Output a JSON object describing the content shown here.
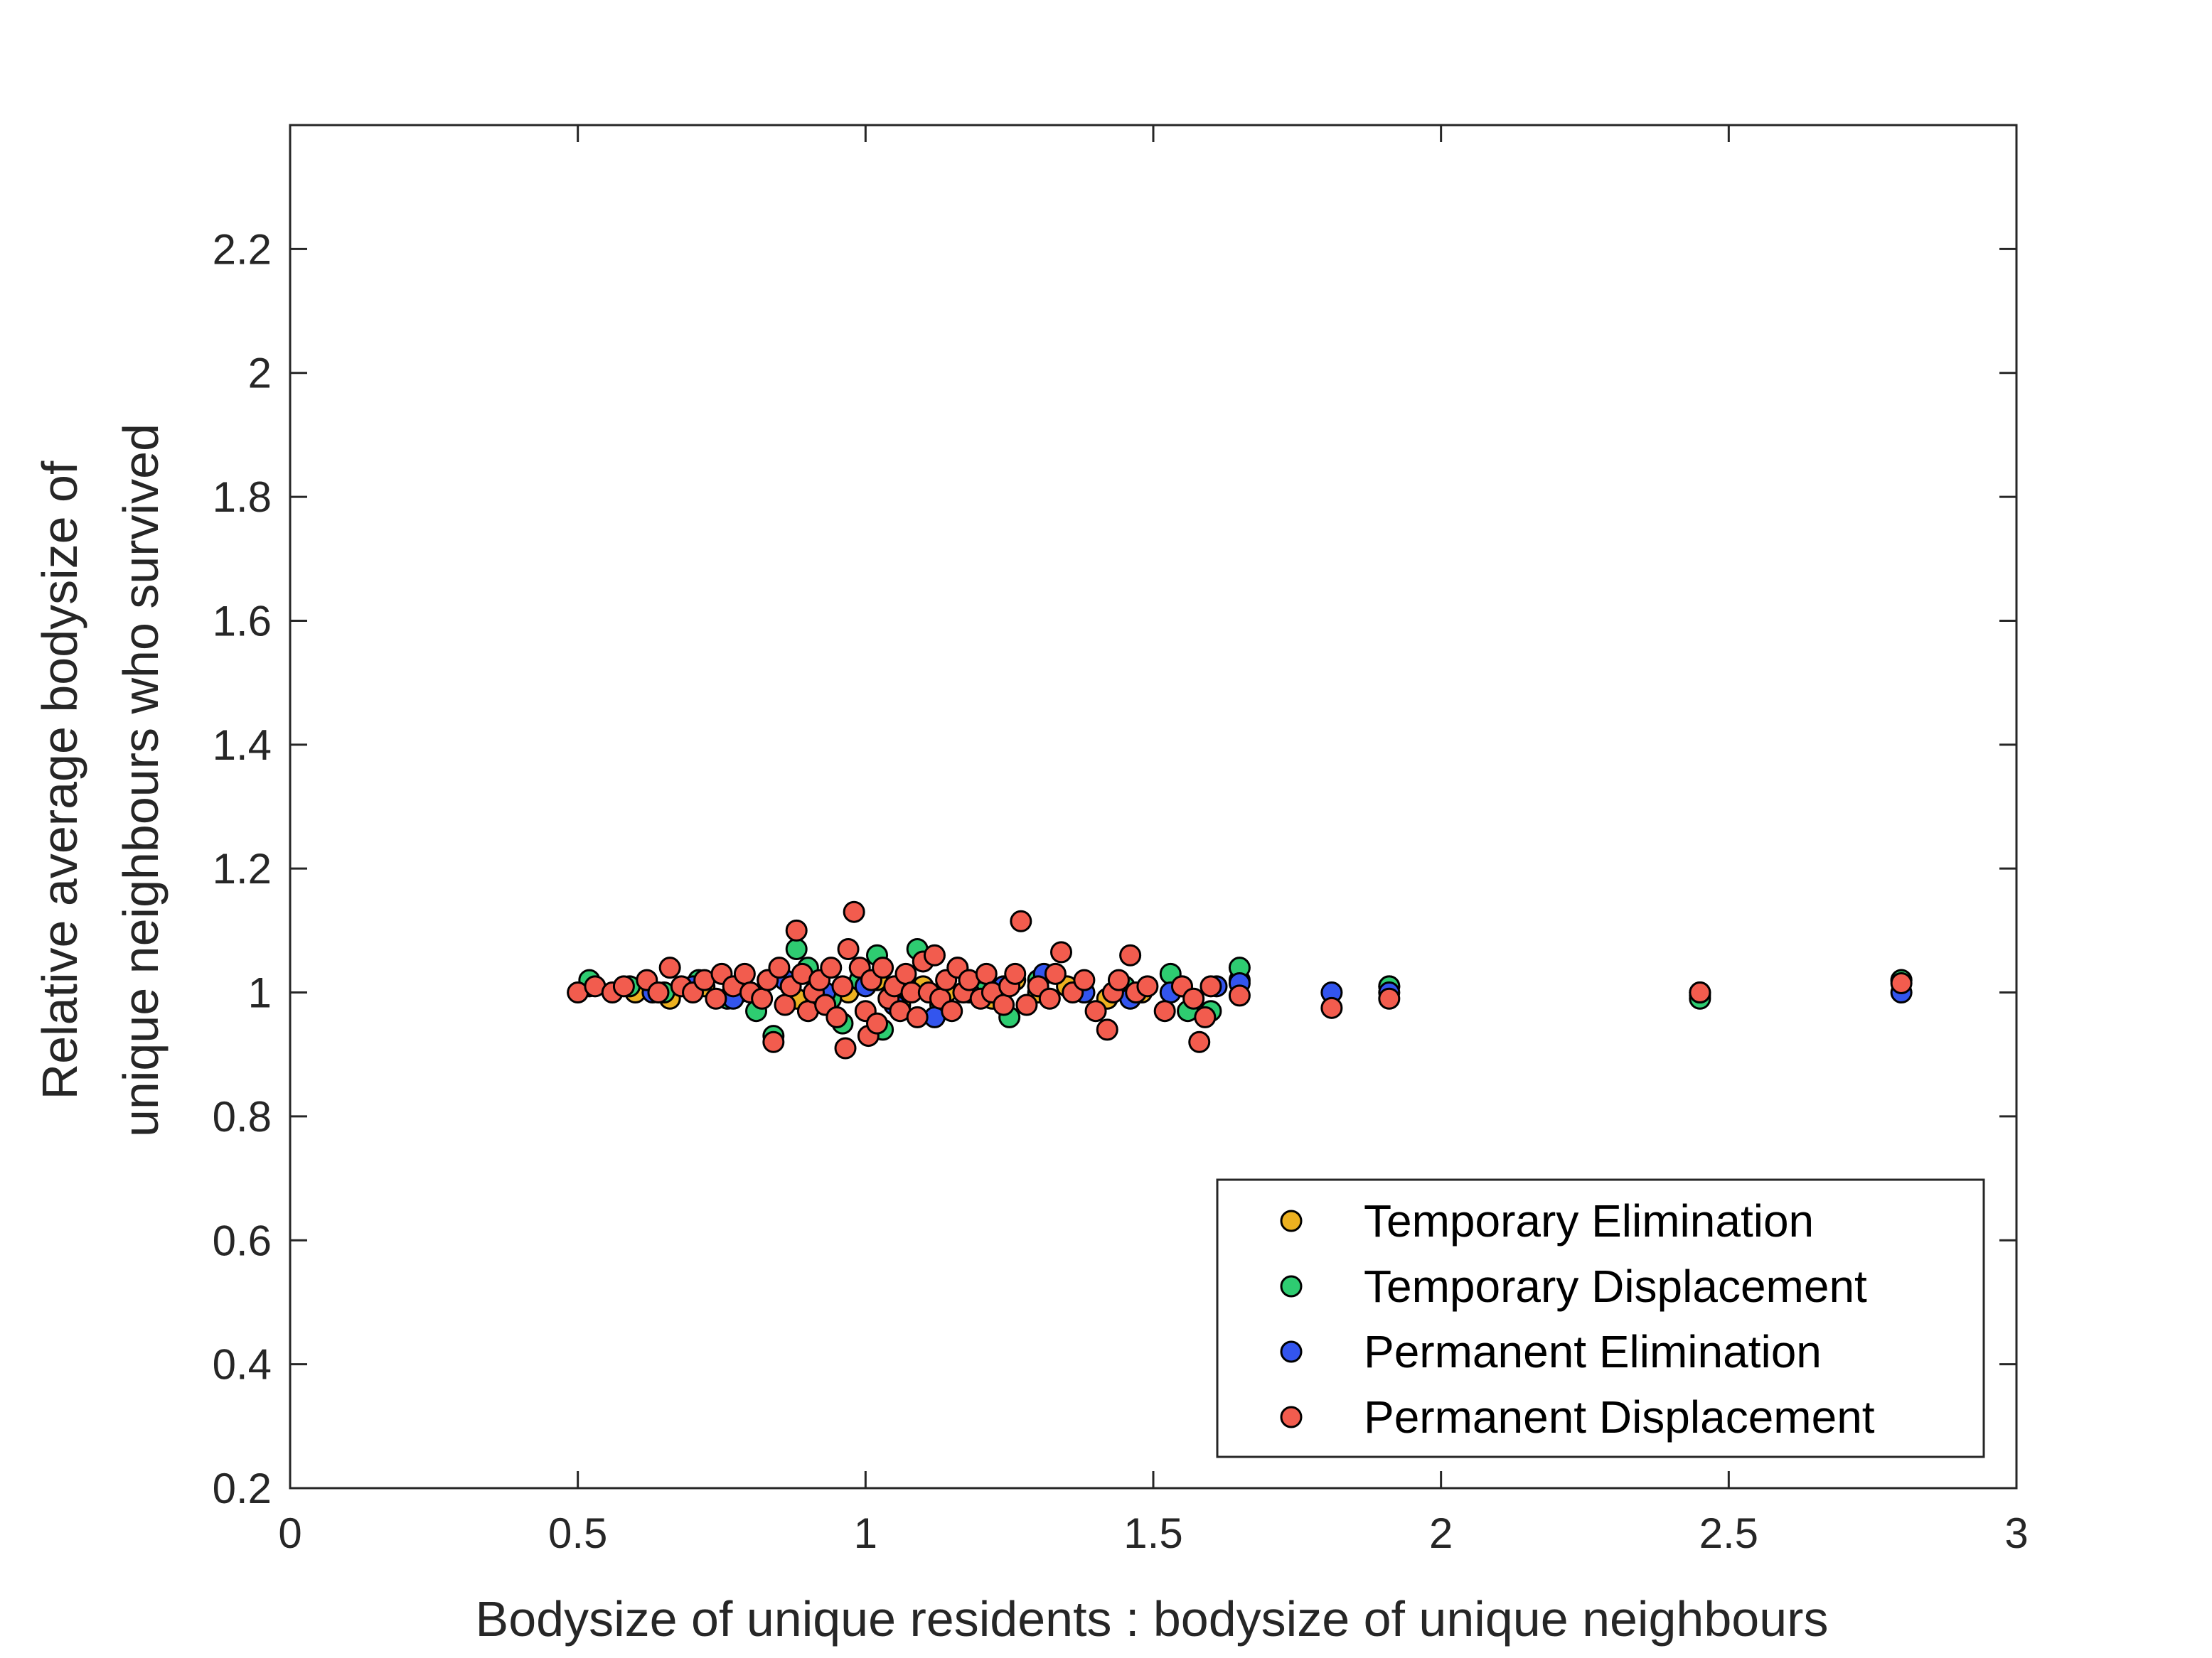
{
  "chart_data": {
    "type": "scatter",
    "xlabel": "Bodysize of unique residents : bodysize of unique neighbours",
    "ylabel_lines": [
      "Relative average bodysize of",
      "unique neighbours who survived"
    ],
    "xlim": [
      0,
      3
    ],
    "ylim": [
      0.2,
      2.4
    ],
    "xticks": [
      0,
      0.5,
      1,
      1.5,
      2,
      2.5,
      3
    ],
    "xtick_labels": [
      "0",
      "0.5",
      "1",
      "1.5",
      "2",
      "2.5",
      "3"
    ],
    "yticks": [
      0.2,
      0.4,
      0.6,
      0.8,
      1,
      1.2,
      1.4,
      1.6,
      1.8,
      2,
      2.2
    ],
    "ytick_labels": [
      "0.2",
      "0.4",
      "0.6",
      "0.8",
      "1",
      "1.2",
      "1.4",
      "1.6",
      "1.8",
      "2",
      "2.2"
    ],
    "grid": false,
    "legend_position": "bottom-right",
    "series": [
      {
        "name": "Temporary Elimination",
        "color": "#EDB120",
        "points": [
          [
            0.52,
            1.01
          ],
          [
            0.6,
            1.0
          ],
          [
            0.66,
            0.99
          ],
          [
            0.72,
            1.01
          ],
          [
            0.78,
            1.0
          ],
          [
            0.83,
            1.02
          ],
          [
            0.88,
            0.99
          ],
          [
            0.92,
            1.01
          ],
          [
            0.97,
            1.0
          ],
          [
            1.02,
            1.02
          ],
          [
            1.06,
            0.98
          ],
          [
            1.1,
            1.01
          ],
          [
            1.14,
            1.0
          ],
          [
            1.18,
            1.02
          ],
          [
            1.22,
            0.99
          ],
          [
            1.26,
            1.02
          ],
          [
            1.3,
            1.0
          ],
          [
            1.35,
            1.01
          ],
          [
            1.42,
            0.99
          ],
          [
            1.48,
            1.0
          ],
          [
            1.55,
            1.01
          ],
          [
            1.65,
            1.02
          ],
          [
            1.91,
            1.01
          ],
          [
            2.45,
            0.995
          ],
          [
            2.8,
            1.02
          ]
        ]
      },
      {
        "name": "Temporary Displacement",
        "color": "#2ECC71",
        "points": [
          [
            0.52,
            1.02
          ],
          [
            0.59,
            1.01
          ],
          [
            0.65,
            1.0
          ],
          [
            0.71,
            1.02
          ],
          [
            0.76,
            0.99
          ],
          [
            0.81,
            0.97
          ],
          [
            0.84,
            0.93
          ],
          [
            0.88,
            1.07
          ],
          [
            0.9,
            1.04
          ],
          [
            0.94,
            0.99
          ],
          [
            0.96,
            0.95
          ],
          [
            0.99,
            1.02
          ],
          [
            1.02,
            1.06
          ],
          [
            1.03,
            0.94
          ],
          [
            1.07,
            1.01
          ],
          [
            1.09,
            1.07
          ],
          [
            1.13,
            0.98
          ],
          [
            1.16,
            1.04
          ],
          [
            1.2,
            1.0
          ],
          [
            1.25,
            0.96
          ],
          [
            1.3,
            1.02
          ],
          [
            1.38,
            1.0
          ],
          [
            1.45,
            1.01
          ],
          [
            1.53,
            1.03
          ],
          [
            1.56,
            0.97
          ],
          [
            1.6,
            0.97
          ],
          [
            1.65,
            1.04
          ],
          [
            1.91,
            1.01
          ],
          [
            2.45,
            0.99
          ],
          [
            2.8,
            1.02
          ]
        ]
      },
      {
        "name": "Permanent Elimination",
        "color": "#3355EE",
        "points": [
          [
            0.63,
            1.0
          ],
          [
            0.7,
            1.01
          ],
          [
            0.77,
            0.99
          ],
          [
            0.86,
            1.02
          ],
          [
            0.93,
            1.0
          ],
          [
            1.0,
            1.01
          ],
          [
            1.05,
            0.98
          ],
          [
            1.12,
            0.96
          ],
          [
            1.18,
            1.0
          ],
          [
            1.24,
            1.01
          ],
          [
            1.31,
            1.03
          ],
          [
            1.38,
            1.0
          ],
          [
            1.46,
            0.99
          ],
          [
            1.53,
            1.0
          ],
          [
            1.61,
            1.01
          ],
          [
            1.65,
            1.015
          ],
          [
            1.81,
            1.0
          ],
          [
            1.91,
            1.0
          ],
          [
            2.45,
            1.0
          ],
          [
            2.8,
            1.0
          ]
        ]
      },
      {
        "name": "Permanent Displacement",
        "color": "#F25C4E",
        "points": [
          [
            0.5,
            1.0
          ],
          [
            0.53,
            1.01
          ],
          [
            0.56,
            1.0
          ],
          [
            0.58,
            1.01
          ],
          [
            0.62,
            1.02
          ],
          [
            0.64,
            1.0
          ],
          [
            0.66,
            1.04
          ],
          [
            0.68,
            1.01
          ],
          [
            0.7,
            1.0
          ],
          [
            0.72,
            1.02
          ],
          [
            0.74,
            0.99
          ],
          [
            0.75,
            1.03
          ],
          [
            0.77,
            1.01
          ],
          [
            0.79,
            1.03
          ],
          [
            0.8,
            1.0
          ],
          [
            0.82,
            0.99
          ],
          [
            0.83,
            1.02
          ],
          [
            0.84,
            0.92
          ],
          [
            0.85,
            1.04
          ],
          [
            0.86,
            0.98
          ],
          [
            0.87,
            1.01
          ],
          [
            0.88,
            1.1
          ],
          [
            0.89,
            1.03
          ],
          [
            0.9,
            0.97
          ],
          [
            0.91,
            1.0
          ],
          [
            0.92,
            1.02
          ],
          [
            0.93,
            0.98
          ],
          [
            0.94,
            1.04
          ],
          [
            0.95,
            0.96
          ],
          [
            0.96,
            1.01
          ],
          [
            0.965,
            0.91
          ],
          [
            0.97,
            1.07
          ],
          [
            0.98,
            1.13
          ],
          [
            0.99,
            1.04
          ],
          [
            1.0,
            0.97
          ],
          [
            1.005,
            0.93
          ],
          [
            1.01,
            1.02
          ],
          [
            1.02,
            0.95
          ],
          [
            1.03,
            1.04
          ],
          [
            1.04,
            0.99
          ],
          [
            1.05,
            1.01
          ],
          [
            1.06,
            0.97
          ],
          [
            1.07,
            1.03
          ],
          [
            1.08,
            1.0
          ],
          [
            1.09,
            0.96
          ],
          [
            1.1,
            1.05
          ],
          [
            1.11,
            1.0
          ],
          [
            1.12,
            1.06
          ],
          [
            1.13,
            0.99
          ],
          [
            1.14,
            1.02
          ],
          [
            1.15,
            0.97
          ],
          [
            1.16,
            1.04
          ],
          [
            1.17,
            1.0
          ],
          [
            1.18,
            1.02
          ],
          [
            1.2,
            0.99
          ],
          [
            1.21,
            1.03
          ],
          [
            1.22,
            1.0
          ],
          [
            1.24,
            0.98
          ],
          [
            1.25,
            1.01
          ],
          [
            1.26,
            1.03
          ],
          [
            1.27,
            1.115
          ],
          [
            1.28,
            0.98
          ],
          [
            1.3,
            1.01
          ],
          [
            1.32,
            0.99
          ],
          [
            1.33,
            1.03
          ],
          [
            1.34,
            1.065
          ],
          [
            1.36,
            1.0
          ],
          [
            1.38,
            1.02
          ],
          [
            1.4,
            0.97
          ],
          [
            1.42,
            0.94
          ],
          [
            1.43,
            1.0
          ],
          [
            1.44,
            1.02
          ],
          [
            1.46,
            1.06
          ],
          [
            1.47,
            1.0
          ],
          [
            1.49,
            1.01
          ],
          [
            1.52,
            0.97
          ],
          [
            1.55,
            1.01
          ],
          [
            1.57,
            0.99
          ],
          [
            1.58,
            0.92
          ],
          [
            1.59,
            0.96
          ],
          [
            1.6,
            1.01
          ],
          [
            1.65,
            0.995
          ],
          [
            1.81,
            0.975
          ],
          [
            1.91,
            0.99
          ],
          [
            2.45,
            1.0
          ],
          [
            2.8,
            1.015
          ]
        ]
      }
    ]
  }
}
